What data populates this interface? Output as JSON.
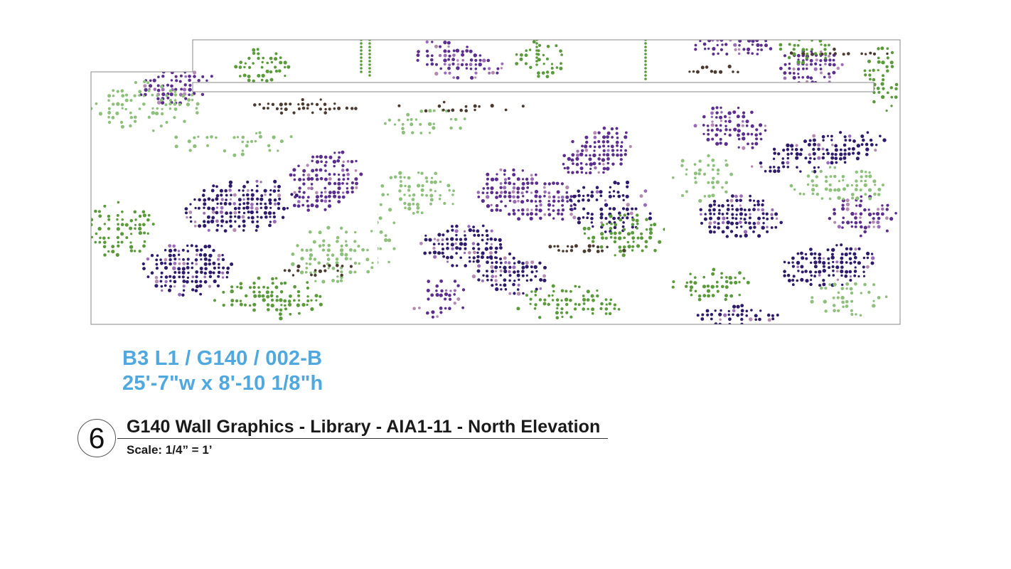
{
  "elevation": {
    "colors": {
      "dark_purple": "#2e1a6b",
      "purple": "#5b2d8e",
      "light_purple": "#9a6cb8",
      "mauve": "#b48ab0",
      "green": "#5a9a3a",
      "light_green": "#8dc07a",
      "brown": "#4a3a30",
      "outline": "#8a8a8a"
    },
    "panels": 3
  },
  "label": {
    "ref_code": "B3 L1 / G140 / 002-B",
    "dimensions": "25'-7\"w x 8'-10 1/8\"h",
    "accent_color": "#4fa8df"
  },
  "title_block": {
    "number": "6",
    "title": "G140 Wall Graphics - Library - AIA1-11 - North Elevation",
    "scale": "Scale: 1/4” = 1’"
  }
}
